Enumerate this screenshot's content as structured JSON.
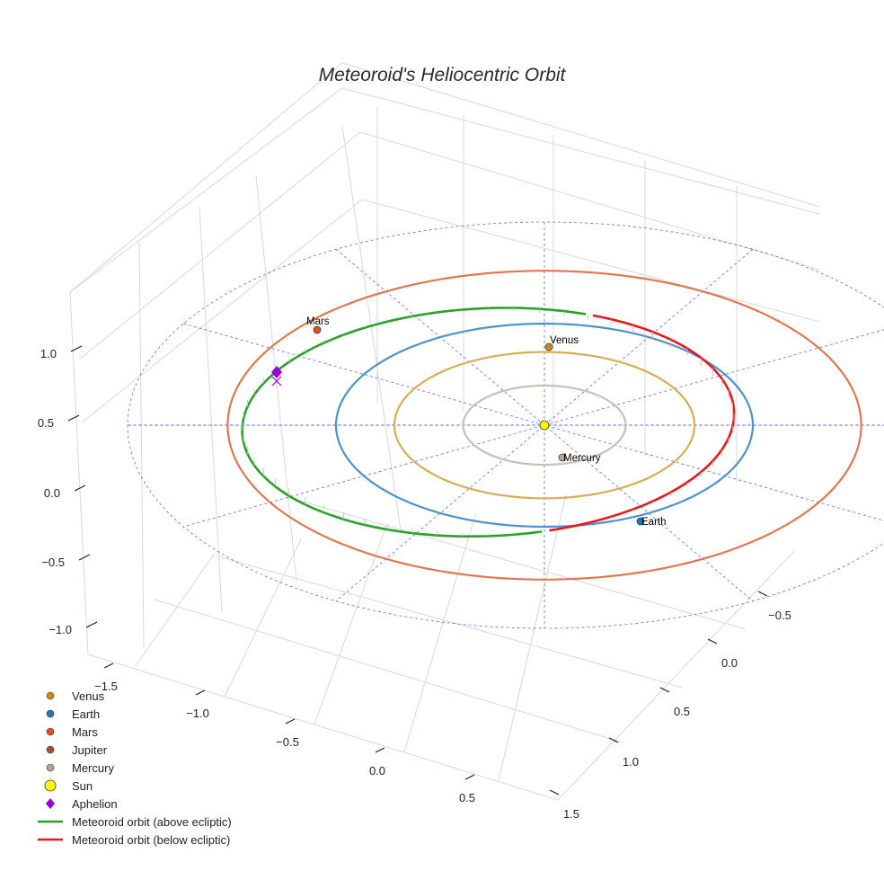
{
  "chart_data": {
    "type": "scatter",
    "title": "Meteoroid's Heliocentric Orbit",
    "axes": {
      "x_ticks": [
        -1.5,
        -1.0,
        -0.5,
        0.0,
        0.5
      ],
      "y_ticks": [
        -0.5,
        0.0,
        0.5,
        1.0,
        1.5
      ],
      "z_ticks": [
        -1.0,
        -0.5,
        0.0,
        0.5,
        1.0
      ],
      "x_tick_labels": [
        "−1.5",
        "−1.0",
        "−0.5",
        "0.0",
        "0.5"
      ],
      "y_tick_labels": [
        "−0.5",
        "0.0",
        "0.5",
        "1.0",
        "1.5"
      ],
      "z_tick_labels": [
        "−1.0",
        "−0.5",
        "0.0",
        "0.5",
        "1.0"
      ],
      "grid": true
    },
    "planets": [
      {
        "name": "Venus",
        "label": "Venus",
        "color": "#d18a19",
        "x": 0.0,
        "y": 0.72
      },
      {
        "name": "Earth",
        "label": "Earth",
        "color": "#1f77b4",
        "x": 0.5,
        "y": -0.87
      },
      {
        "name": "Mars",
        "label": "Mars",
        "color": "#e0501f",
        "x": -1.1,
        "y": 1.1
      },
      {
        "name": "Jupiter",
        "label": "",
        "color": "#a0522d"
      },
      {
        "name": "Mercury",
        "label": "Mercury",
        "color": "#b5a89a",
        "x": 0.1,
        "y": -0.38
      }
    ],
    "sun": {
      "name": "Sun",
      "color": "#ffff00",
      "x": 0,
      "y": 0
    },
    "aphelion": {
      "name": "Aphelion",
      "color": "#9400d3"
    },
    "orbits": [
      {
        "name": "Mercury orbit",
        "color": "#c8c0b8",
        "radius": 0.39
      },
      {
        "name": "Venus orbit",
        "color": "#d9ad55",
        "radius": 0.72
      },
      {
        "name": "Earth orbit",
        "color": "#4e92cc",
        "radius": 1.0
      },
      {
        "name": "Mars orbit",
        "color": "#e07752",
        "radius": 1.52
      }
    ],
    "meteoroid": {
      "above": {
        "name": "Meteoroid orbit (above ecliptic)",
        "color": "#2ca02c"
      },
      "below": {
        "name": "Meteoroid orbit (below ecliptic)",
        "color": "#e41a1c"
      }
    },
    "legend": {
      "placement": "bottom-left",
      "items": [
        {
          "label": "Venus",
          "kind": "dot",
          "color": "#d18a19"
        },
        {
          "label": "Earth",
          "kind": "dot",
          "color": "#1f77b4"
        },
        {
          "label": "Mars",
          "kind": "dot",
          "color": "#e0501f"
        },
        {
          "label": "Jupiter",
          "kind": "dot",
          "color": "#a0522d"
        },
        {
          "label": "Mercury",
          "kind": "dot",
          "color": "#b5a89a"
        },
        {
          "label": "Sun",
          "kind": "big-dot",
          "color": "#ffff00"
        },
        {
          "label": "Aphelion",
          "kind": "diamond",
          "color": "#9400d3"
        },
        {
          "label": "Meteoroid orbit (above ecliptic)",
          "kind": "line",
          "color": "#2ca02c"
        },
        {
          "label": "Meteoroid orbit (below ecliptic)",
          "kind": "line",
          "color": "#e41a1c"
        }
      ]
    }
  }
}
